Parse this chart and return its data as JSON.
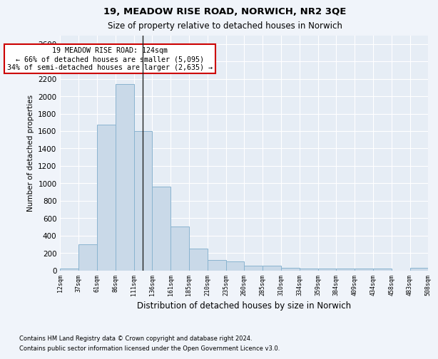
{
  "title1": "19, MEADOW RISE ROAD, NORWICH, NR2 3QE",
  "title2": "Size of property relative to detached houses in Norwich",
  "xlabel": "Distribution of detached houses by size in Norwich",
  "ylabel": "Number of detached properties",
  "bar_values": [
    20,
    300,
    1670,
    2140,
    1600,
    960,
    500,
    250,
    120,
    100,
    50,
    50,
    30,
    20,
    20,
    20,
    20,
    20,
    0,
    25
  ],
  "bar_labels": [
    "12sqm",
    "37sqm",
    "61sqm",
    "86sqm",
    "111sqm",
    "136sqm",
    "161sqm",
    "185sqm",
    "210sqm",
    "235sqm",
    "260sqm",
    "285sqm",
    "310sqm",
    "334sqm",
    "359sqm",
    "384sqm",
    "409sqm",
    "434sqm",
    "458sqm",
    "483sqm",
    "508sqm"
  ],
  "bar_color": "#c9d9e8",
  "bar_edge_color": "#8ab4d0",
  "vline_x": 4,
  "vline_color": "#222222",
  "annotation_text": "19 MEADOW RISE ROAD: 124sqm\n← 66% of detached houses are smaller (5,095)\n34% of semi-detached houses are larger (2,635) →",
  "annotation_box_color": "#ffffff",
  "annotation_box_edge": "#cc0000",
  "ylim": [
    0,
    2700
  ],
  "yticks": [
    0,
    200,
    400,
    600,
    800,
    1000,
    1200,
    1400,
    1600,
    1800,
    2000,
    2200,
    2400,
    2600
  ],
  "footer1": "Contains HM Land Registry data © Crown copyright and database right 2024.",
  "footer2": "Contains public sector information licensed under the Open Government Licence v3.0.",
  "bg_color": "#f0f4fa",
  "plot_bg_color": "#e6edf5"
}
